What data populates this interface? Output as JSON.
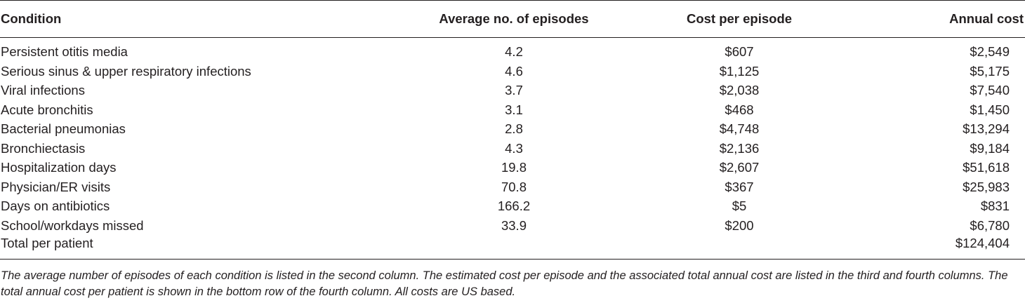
{
  "table": {
    "headers": {
      "condition": "Condition",
      "episodes": "Average no. of episodes",
      "cost_per_episode": "Cost per episode",
      "annual_cost": "Annual cost"
    },
    "rows": [
      {
        "condition": "Persistent otitis media",
        "episodes": "4.2",
        "cost_per_episode": "$607",
        "annual_cost": "$2,549"
      },
      {
        "condition": "Serious sinus & upper respiratory infections",
        "episodes": "4.6",
        "cost_per_episode": "$1,125",
        "annual_cost": "$5,175"
      },
      {
        "condition": "Viral infections",
        "episodes": "3.7",
        "cost_per_episode": "$2,038",
        "annual_cost": "$7,540"
      },
      {
        "condition": "Acute bronchitis",
        "episodes": "3.1",
        "cost_per_episode": "$468",
        "annual_cost": "$1,450"
      },
      {
        "condition": "Bacterial pneumonias",
        "episodes": "2.8",
        "cost_per_episode": "$4,748",
        "annual_cost": "$13,294"
      },
      {
        "condition": "Bronchiectasis",
        "episodes": "4.3",
        "cost_per_episode": "$2,136",
        "annual_cost": "$9,184"
      },
      {
        "condition": "Hospitalization days",
        "episodes": "19.8",
        "cost_per_episode": "$2,607",
        "annual_cost": "$51,618"
      },
      {
        "condition": "Physician/ER visits",
        "episodes": "70.8",
        "cost_per_episode": "$367",
        "annual_cost": "$25,983"
      },
      {
        "condition": "Days on antibiotics",
        "episodes": "166.2",
        "cost_per_episode": "$5",
        "annual_cost": "$831"
      },
      {
        "condition": "School/workdays missed",
        "episodes": "33.9",
        "cost_per_episode": "$200",
        "annual_cost": "$6,780"
      }
    ],
    "total": {
      "condition": "Total per patient",
      "annual_cost": "$124,404"
    }
  },
  "footnote": "The average number of episodes of each condition is listed in the second column. The estimated cost per episode and the associated total annual cost are listed in the third and fourth columns. The total annual cost per patient is shown in the bottom row of the fourth column. All costs are US based."
}
